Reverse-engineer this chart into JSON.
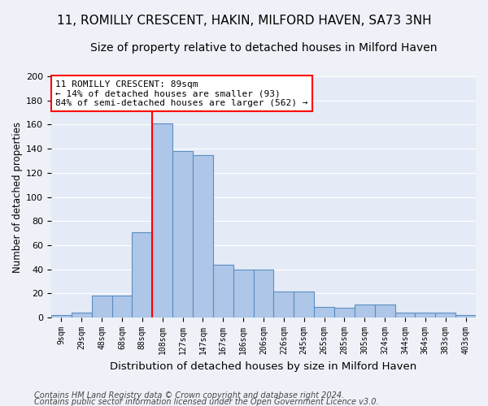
{
  "title": "11, ROMILLY CRESCENT, HAKIN, MILFORD HAVEN, SA73 3NH",
  "subtitle": "Size of property relative to detached houses in Milford Haven",
  "xlabel": "Distribution of detached houses by size in Milford Haven",
  "ylabel": "Number of detached properties",
  "footer_line1": "Contains HM Land Registry data © Crown copyright and database right 2024.",
  "footer_line2": "Contains public sector information licensed under the Open Government Licence v3.0.",
  "bin_labels": [
    "9sqm",
    "29sqm",
    "48sqm",
    "68sqm",
    "88sqm",
    "108sqm",
    "127sqm",
    "147sqm",
    "167sqm",
    "186sqm",
    "206sqm",
    "226sqm",
    "245sqm",
    "265sqm",
    "285sqm",
    "305sqm",
    "324sqm",
    "344sqm",
    "364sqm",
    "383sqm",
    "403sqm"
  ],
  "bar_values": [
    2,
    4,
    18,
    18,
    71,
    161,
    138,
    135,
    44,
    40,
    40,
    22,
    22,
    9,
    8,
    11,
    11,
    4,
    4,
    4,
    2
  ],
  "bar_color": "#aec6e8",
  "bar_edge_color": "#5a8fc2",
  "vline_bin_index": 4.5,
  "annotation_text": "11 ROMILLY CRESCENT: 89sqm\n← 14% of detached houses are smaller (93)\n84% of semi-detached houses are larger (562) →",
  "annotation_box_facecolor": "white",
  "annotation_box_edgecolor": "red",
  "vline_color": "red",
  "ylim": [
    0,
    200
  ],
  "yticks": [
    0,
    20,
    40,
    60,
    80,
    100,
    120,
    140,
    160,
    180,
    200
  ],
  "background_color": "#eef2f8",
  "plot_background_color": "#e4eaf6",
  "grid_color": "white",
  "title_fontsize": 11,
  "subtitle_fontsize": 10,
  "xlabel_fontsize": 9.5,
  "ylabel_fontsize": 8.5,
  "tick_fontsize": 7,
  "annotation_fontsize": 8,
  "footer_fontsize": 7
}
